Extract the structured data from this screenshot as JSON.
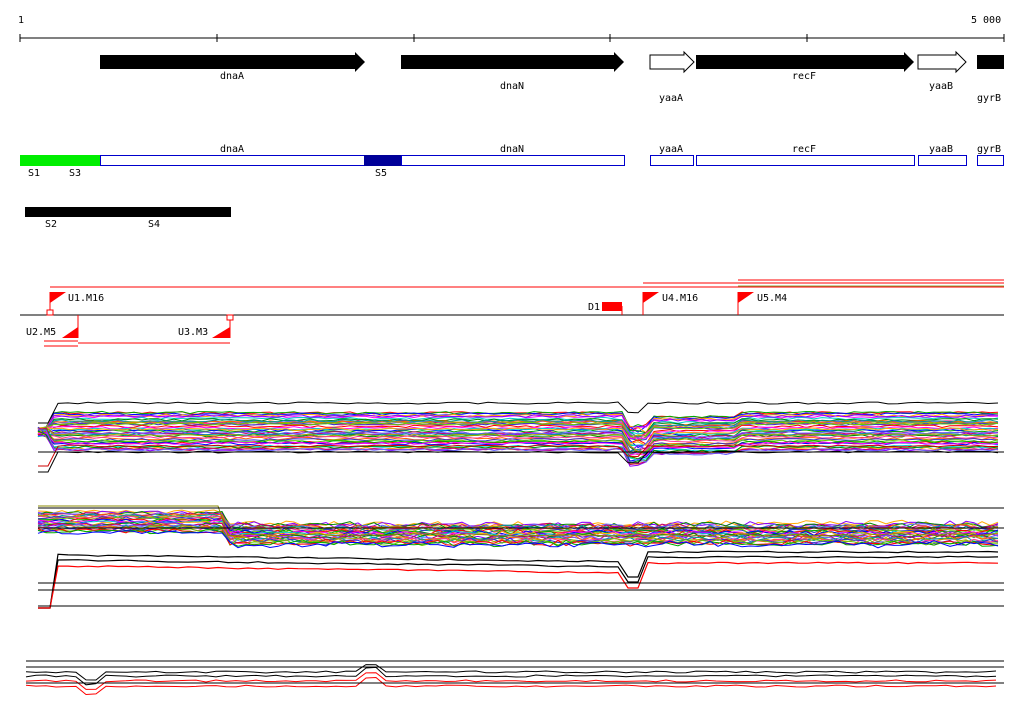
{
  "ruler": {
    "start_label": "1",
    "end_label": "5 000"
  },
  "genes": [
    {
      "label": "dnaA",
      "style": "filled"
    },
    {
      "label": "dnaN",
      "style": "filled"
    },
    {
      "label": "yaaA",
      "style": "open"
    },
    {
      "label": "recF",
      "style": "filled"
    },
    {
      "label": "yaaB",
      "style": "open"
    },
    {
      "label": "gyrB",
      "style": "filled"
    }
  ],
  "annotation_track": {
    "regions": [
      {
        "label": "dnaA"
      },
      {
        "label": "dnaN"
      },
      {
        "label": "yaaA"
      },
      {
        "label": "recF"
      },
      {
        "label": "yaaB"
      },
      {
        "label": "gyrB"
      }
    ],
    "segments": [
      {
        "label": "S1",
        "color": "#00ee00"
      },
      {
        "label": "S3",
        "color": "#00ee00"
      },
      {
        "label": "S5",
        "color": "#000099"
      }
    ]
  },
  "black_segments": [
    {
      "label": "S2"
    },
    {
      "label": "S4"
    }
  ],
  "features": {
    "flags_above": [
      {
        "label": "U1.M16"
      },
      {
        "label": "U4.M16"
      },
      {
        "label": "U5.M4"
      }
    ],
    "flags_below": [
      {
        "label": "U2.M5"
      },
      {
        "label": "U3.M3"
      }
    ],
    "deletions": [
      {
        "label": "D1"
      }
    ]
  },
  "colors": {
    "gene_fill": "#000000",
    "region_stroke": "#0000cc",
    "feature_red": "#ff0000",
    "axis": "#000000"
  }
}
